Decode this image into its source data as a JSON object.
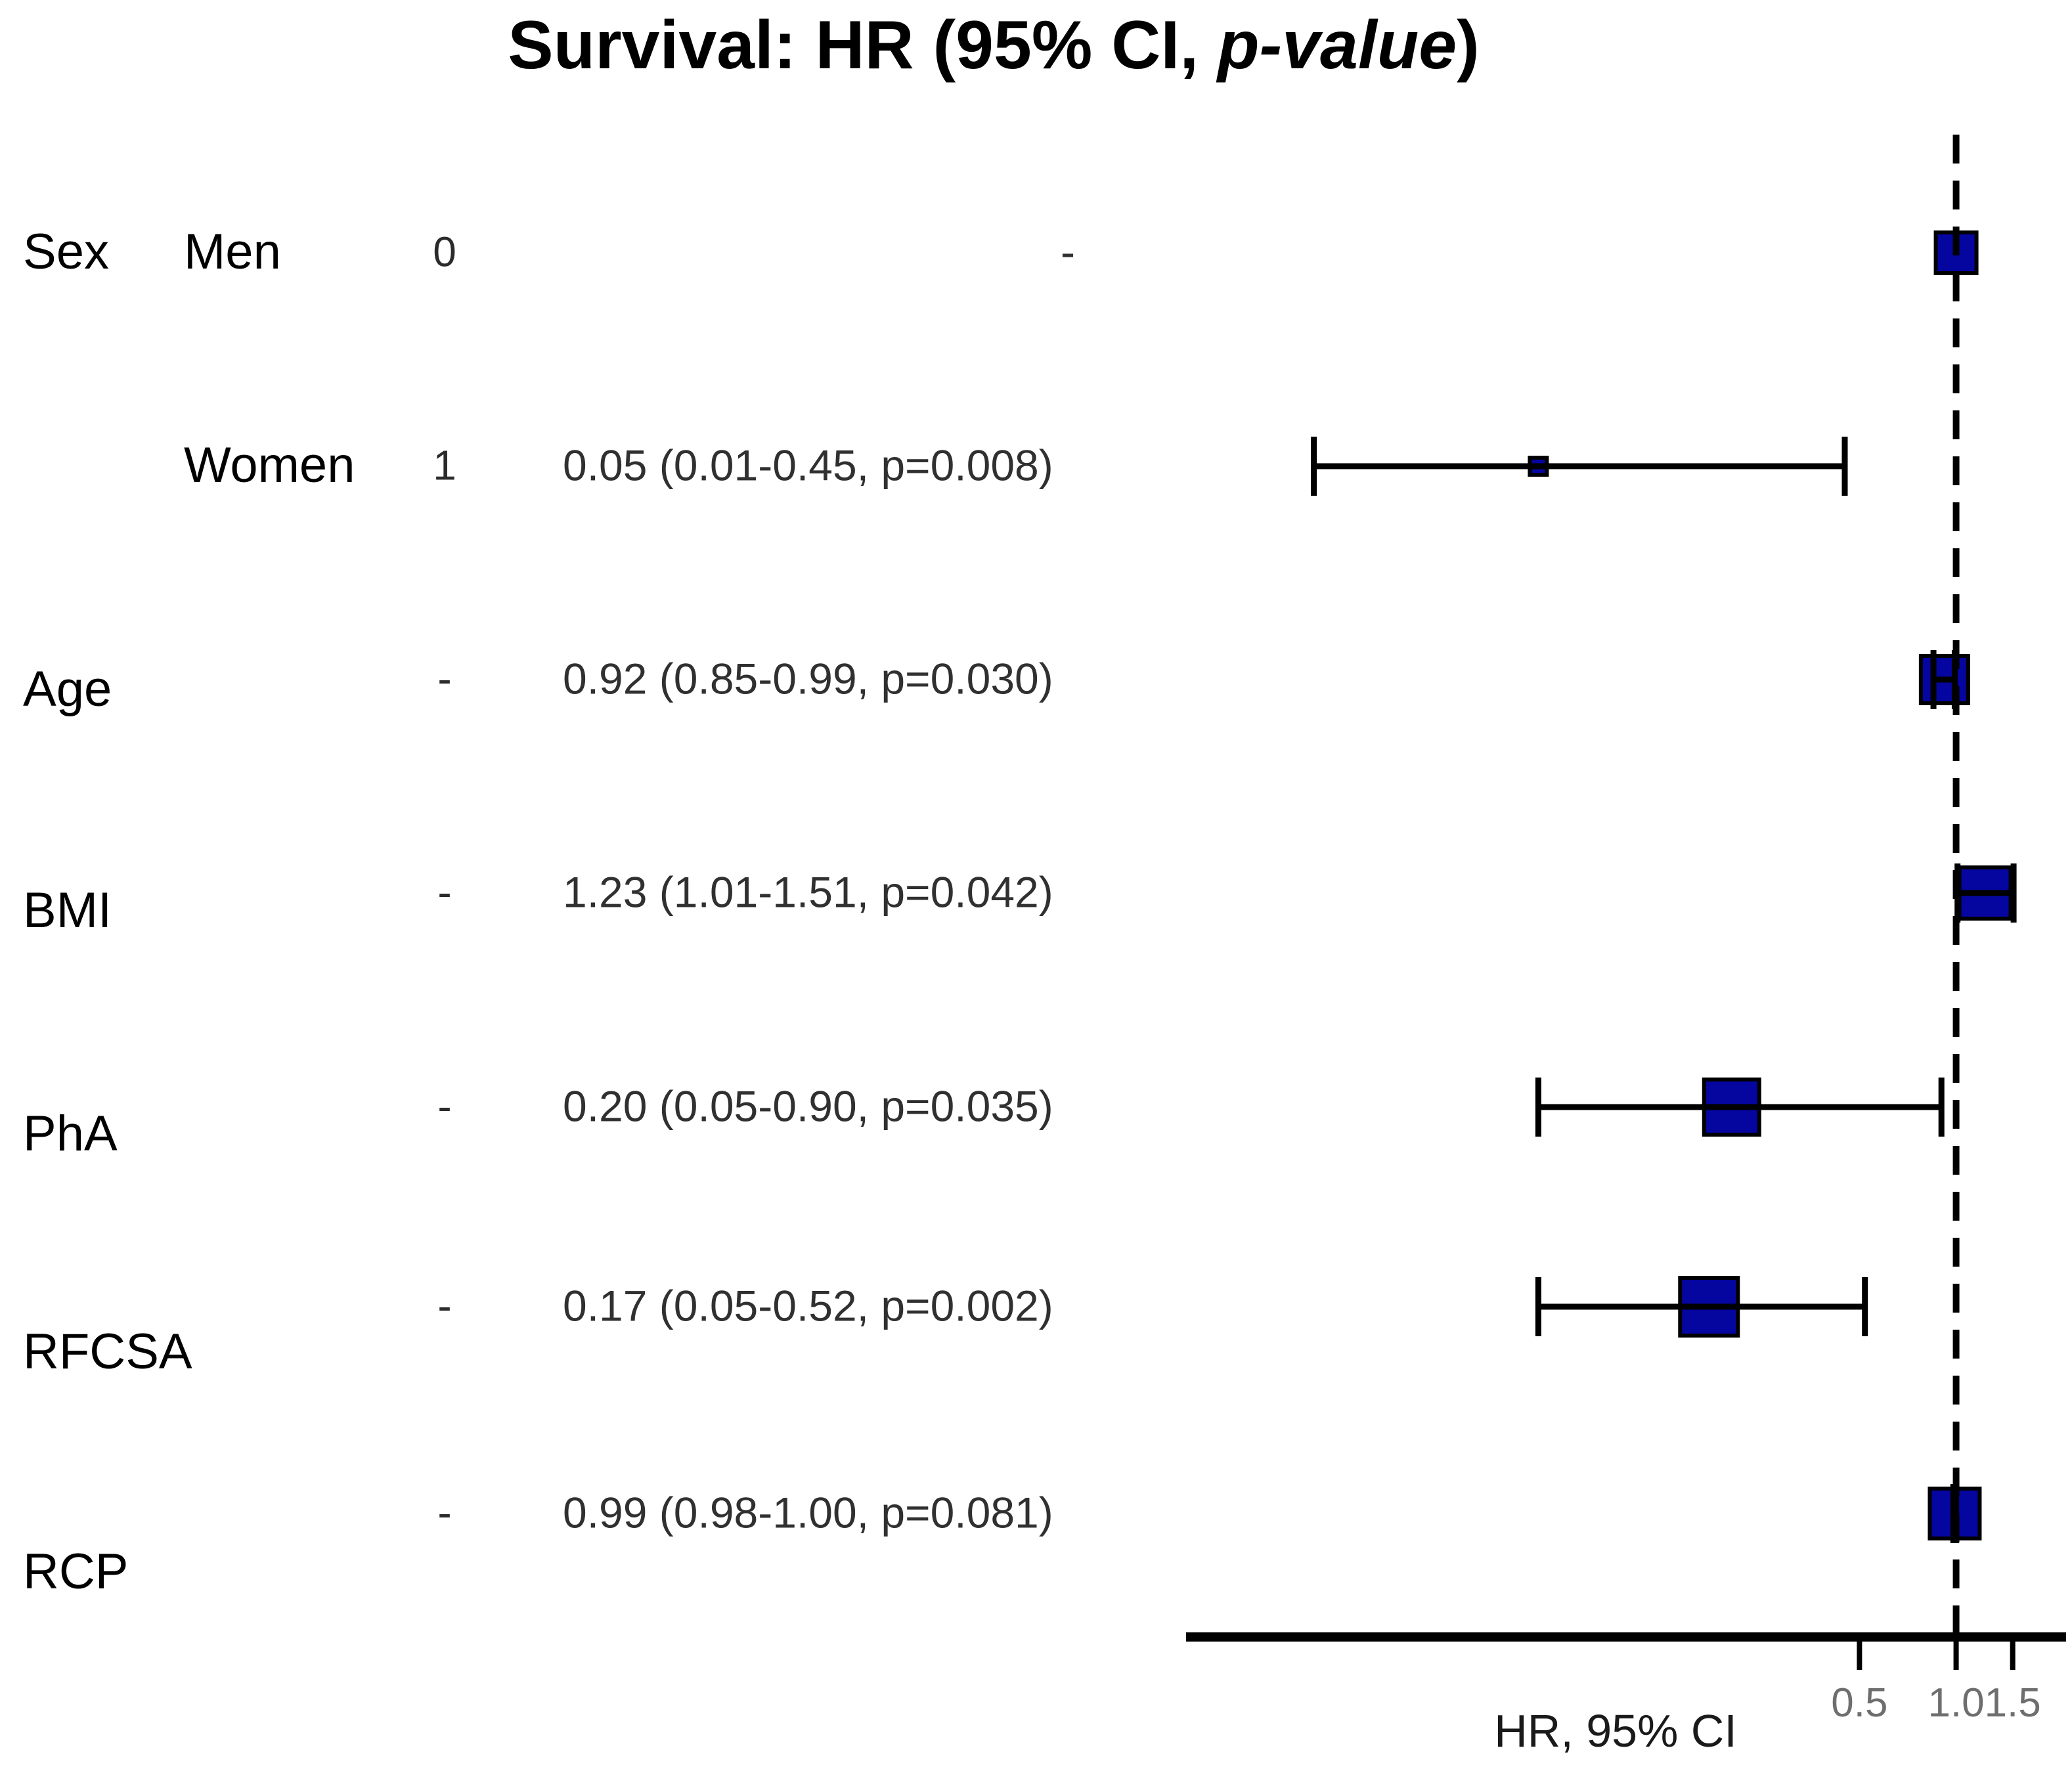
{
  "title": {
    "prefix": "Survival: HR (95% CI, ",
    "italic": "p-value",
    "suffix": ")"
  },
  "chart_data": {
    "type": "forest",
    "xlabel": "HR, 95% CI",
    "x_scale": "log",
    "x_domain": [
      0.004,
      2.2
    ],
    "x_ticks": [
      0.5,
      1.0,
      1.5
    ],
    "x_tick_labels": [
      "0.5",
      "1.0",
      "1.5"
    ],
    "reference_line": 1.0,
    "colors": {
      "marker_fill": "#0505a0",
      "marker_border": "#000000",
      "line": "#000000",
      "tick_label": "#6e6e6e"
    },
    "rows": [
      {
        "group": "Sex",
        "label": "Men",
        "code": "0",
        "hr_text": "-",
        "hr": 1.0,
        "ci_low": null,
        "ci_high": null,
        "p": null,
        "marker_size": 62,
        "label_dy": 0,
        "hr_text_align": "right"
      },
      {
        "group": "",
        "label": "Women",
        "code": "1",
        "hr_text": "0.05 (0.01-0.45, p=0.008)",
        "hr": 0.05,
        "ci_low": 0.01,
        "ci_high": 0.45,
        "p": 0.008,
        "marker_size": 26,
        "label_dy": 0,
        "hr_text_align": "left"
      },
      {
        "group": "Age",
        "label": "",
        "code": "-",
        "hr_text": "0.92 (0.85-0.99, p=0.030)",
        "hr": 0.92,
        "ci_low": 0.85,
        "ci_high": 0.99,
        "p": 0.03,
        "marker_size": 72,
        "label_dy": 16,
        "hr_text_align": "left"
      },
      {
        "group": "BMI",
        "label": "",
        "code": "-",
        "hr_text": "1.23 (1.01-1.51, p=0.042)",
        "hr": 1.23,
        "ci_low": 1.01,
        "ci_high": 1.51,
        "p": 0.042,
        "marker_size": 78,
        "label_dy": 28,
        "hr_text_align": "left"
      },
      {
        "group": "PhA",
        "label": "",
        "code": "-",
        "hr_text": "0.20 (0.05-0.90, p=0.035)",
        "hr": 0.2,
        "ci_low": 0.05,
        "ci_high": 0.9,
        "p": 0.035,
        "marker_size": 84,
        "label_dy": 42,
        "hr_text_align": "left"
      },
      {
        "group": "RFCSA",
        "label": "",
        "code": "-",
        "hr_text": "0.17 (0.05-0.52, p=0.002)",
        "hr": 0.17,
        "ci_low": 0.05,
        "ci_high": 0.52,
        "p": 0.002,
        "marker_size": 88,
        "label_dy": 70,
        "hr_text_align": "left"
      },
      {
        "group": "RCP",
        "label": "",
        "code": "-",
        "hr_text": "0.99 (0.98-1.00, p=0.081)",
        "hr": 0.99,
        "ci_low": 0.98,
        "ci_high": 1.0,
        "p": 0.081,
        "marker_size": 76,
        "label_dy": 90,
        "hr_text_align": "left"
      }
    ]
  }
}
